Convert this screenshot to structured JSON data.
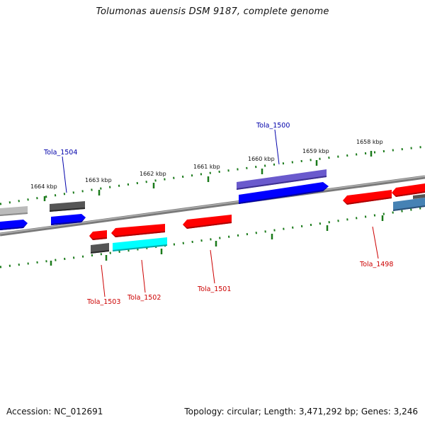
{
  "title": "Tolumonas auensis DSM 9187, complete genome",
  "footer": {
    "accession": "Accession: NC_012691",
    "summary": "Topology: circular; Length: 3,471,292 bp; Genes: 3,246"
  },
  "ruler_labels": [
    "1664 kbp",
    "1663 kbp",
    "1662 kbp",
    "1661 kbp",
    "1660 kbp",
    "1659 kbp",
    "1658 kbp"
  ],
  "gene_labels": {
    "top": [
      "Tola_1504",
      "Tola_1500"
    ],
    "bottom": [
      "Tola_1503",
      "Tola_1502",
      "Tola_1501",
      "Tola_1498"
    ]
  },
  "colors": {
    "top_label": "#0000aa",
    "bottom_label": "#cc0000",
    "red_gene": "#ff0000",
    "blue_gene": "#0000ff",
    "purple_gene": "#6a5acd",
    "cyan_gene": "#00ffff",
    "gray_gene": "#555555",
    "lightgray_gene": "#bbbbbb",
    "steelblue_gene": "#4682b4",
    "backbone": "#7a7a7a",
    "ticks": "#1a7a1a"
  }
}
